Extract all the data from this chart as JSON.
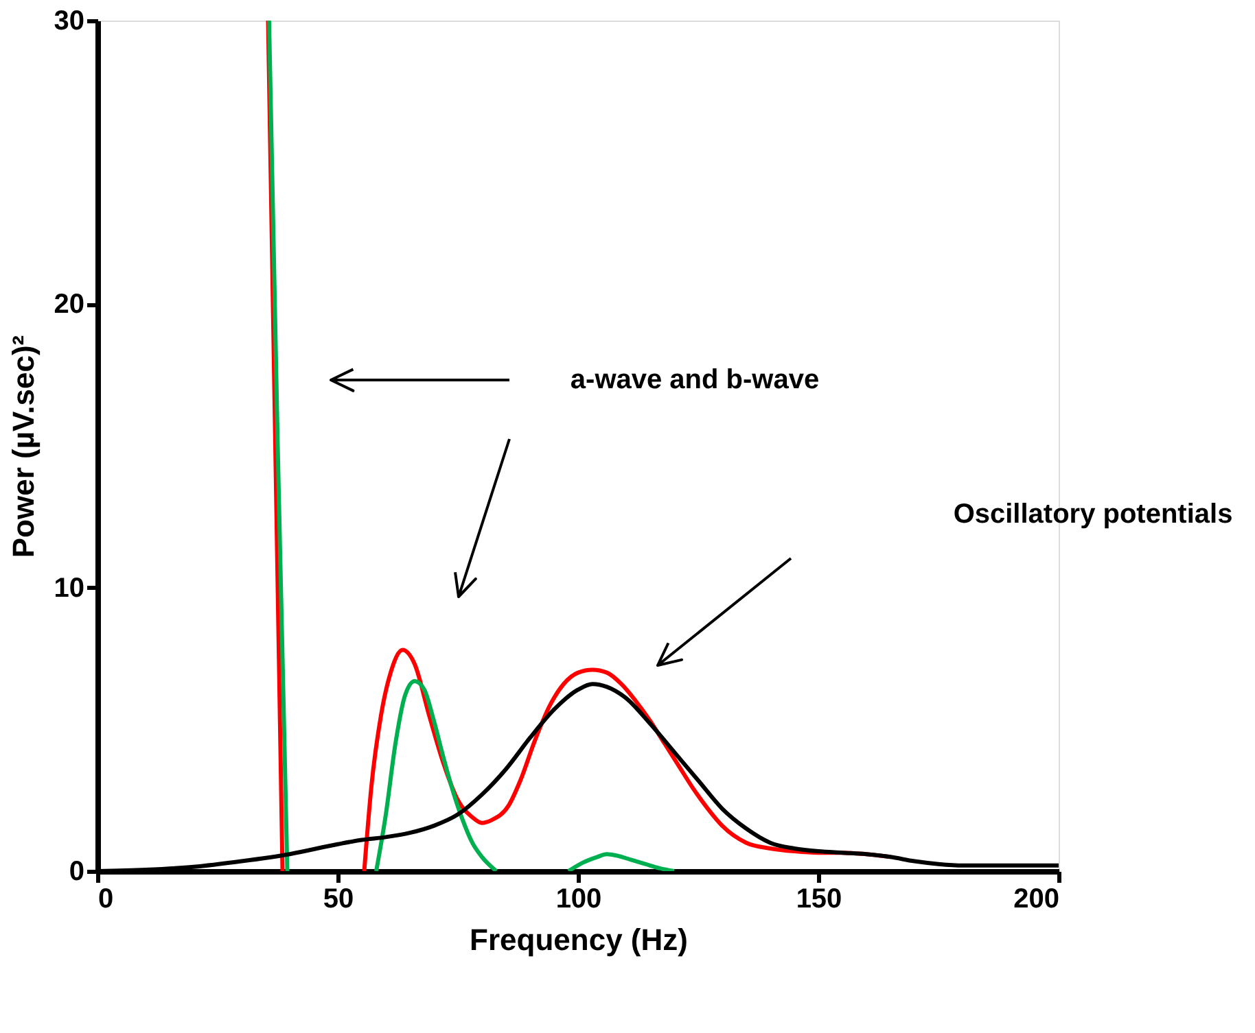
{
  "chart_data": {
    "type": "line",
    "xlabel": "Frequency (Hz)",
    "ylabel": "Power (µV.sec)²",
    "xlim": [
      0,
      200
    ],
    "ylim": [
      0,
      30
    ],
    "xticks": [
      0,
      50,
      100,
      150,
      200
    ],
    "yticks": [
      0,
      10,
      20,
      30
    ],
    "grid": false,
    "marker": "none",
    "line_style": "solid",
    "annotations": [
      "a-wave and b-wave",
      "Oscillatory potentials"
    ],
    "series": [
      {
        "color": "#ff0000",
        "x": [
          35.5,
          37,
          38.5,
          47,
          55.5,
          57,
          59,
          61,
          63.5,
          66,
          69,
          72,
          75,
          78,
          80,
          82,
          85.5,
          88,
          91,
          94,
          97,
          100,
          103,
          106,
          109,
          112,
          115,
          118,
          121,
          124,
          127,
          130,
          135,
          140,
          145,
          150,
          155,
          160,
          165
        ],
        "values": [
          30,
          15,
          0,
          null,
          0,
          3,
          5.5,
          7,
          7.8,
          7.3,
          5.5,
          3.8,
          2.5,
          1.9,
          1.7,
          1.8,
          2.3,
          3.2,
          4.6,
          5.8,
          6.6,
          7.0,
          7.1,
          7.0,
          6.6,
          6.0,
          5.3,
          4.5,
          3.7,
          2.9,
          2.2,
          1.6,
          1.0,
          0.8,
          0.7,
          0.65,
          0.65,
          0.6,
          0.5
        ]
      },
      {
        "color": "#00b050",
        "x": [
          35.7,
          37.5,
          39.5,
          49,
          58,
          60,
          62,
          64,
          66,
          68,
          70,
          72,
          74,
          76,
          78,
          80,
          83,
          90,
          98,
          101,
          104,
          106,
          108,
          111,
          114,
          117,
          120
        ],
        "values": [
          30,
          15,
          0,
          null,
          0,
          2,
          4.5,
          6.2,
          6.7,
          6.4,
          5.3,
          4.0,
          2.8,
          1.8,
          1.0,
          0.5,
          0,
          null,
          0,
          0.3,
          0.5,
          0.6,
          0.55,
          0.4,
          0.25,
          0.1,
          0
        ]
      },
      {
        "color": "#000000",
        "x": [
          0,
          10,
          20,
          30,
          40,
          50,
          55,
          60,
          65,
          70,
          75,
          80,
          85,
          90,
          95,
          100,
          103,
          106,
          110,
          115,
          120,
          125,
          130,
          135,
          140,
          145,
          150,
          155,
          160,
          165,
          170,
          175,
          180,
          190,
          200
        ],
        "values": [
          0,
          0.05,
          0.15,
          0.35,
          0.6,
          0.95,
          1.1,
          1.2,
          1.35,
          1.6,
          2.0,
          2.7,
          3.6,
          4.7,
          5.7,
          6.4,
          6.6,
          6.5,
          6.1,
          5.2,
          4.2,
          3.2,
          2.2,
          1.5,
          1.0,
          0.8,
          0.7,
          0.65,
          0.6,
          0.5,
          0.35,
          0.25,
          0.2,
          0.2,
          0.2
        ]
      }
    ]
  }
}
